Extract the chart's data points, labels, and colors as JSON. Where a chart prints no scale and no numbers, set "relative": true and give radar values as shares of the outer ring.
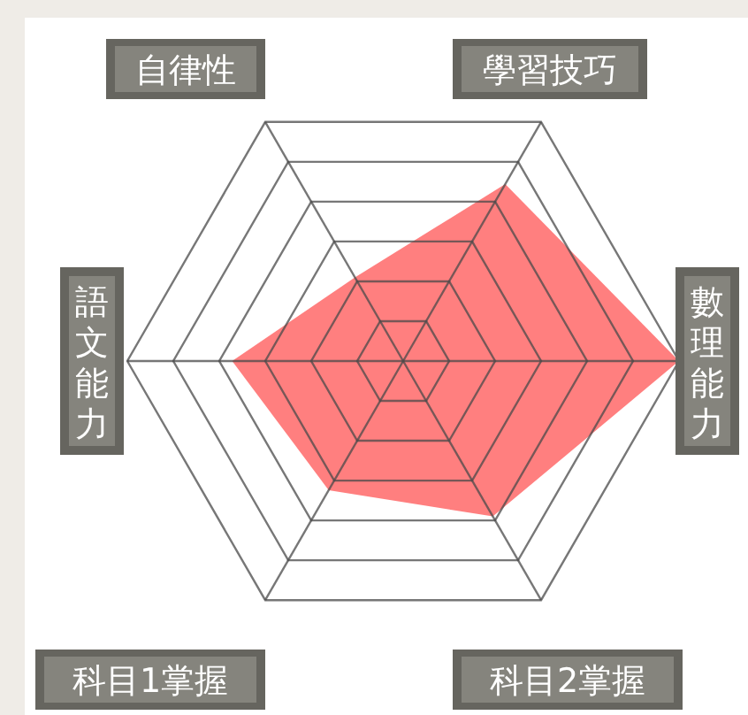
{
  "chart_data": {
    "type": "radar",
    "relative": true,
    "categories": [
      "學習技巧",
      "數理能力",
      "科目2掌握",
      "科目1掌握",
      "語文能力",
      "自律性"
    ],
    "series": [
      {
        "color": "#ff7f7f",
        "values": [
          0.74,
          1.0,
          0.65,
          0.54,
          0.62,
          0.35
        ]
      }
    ]
  }
}
